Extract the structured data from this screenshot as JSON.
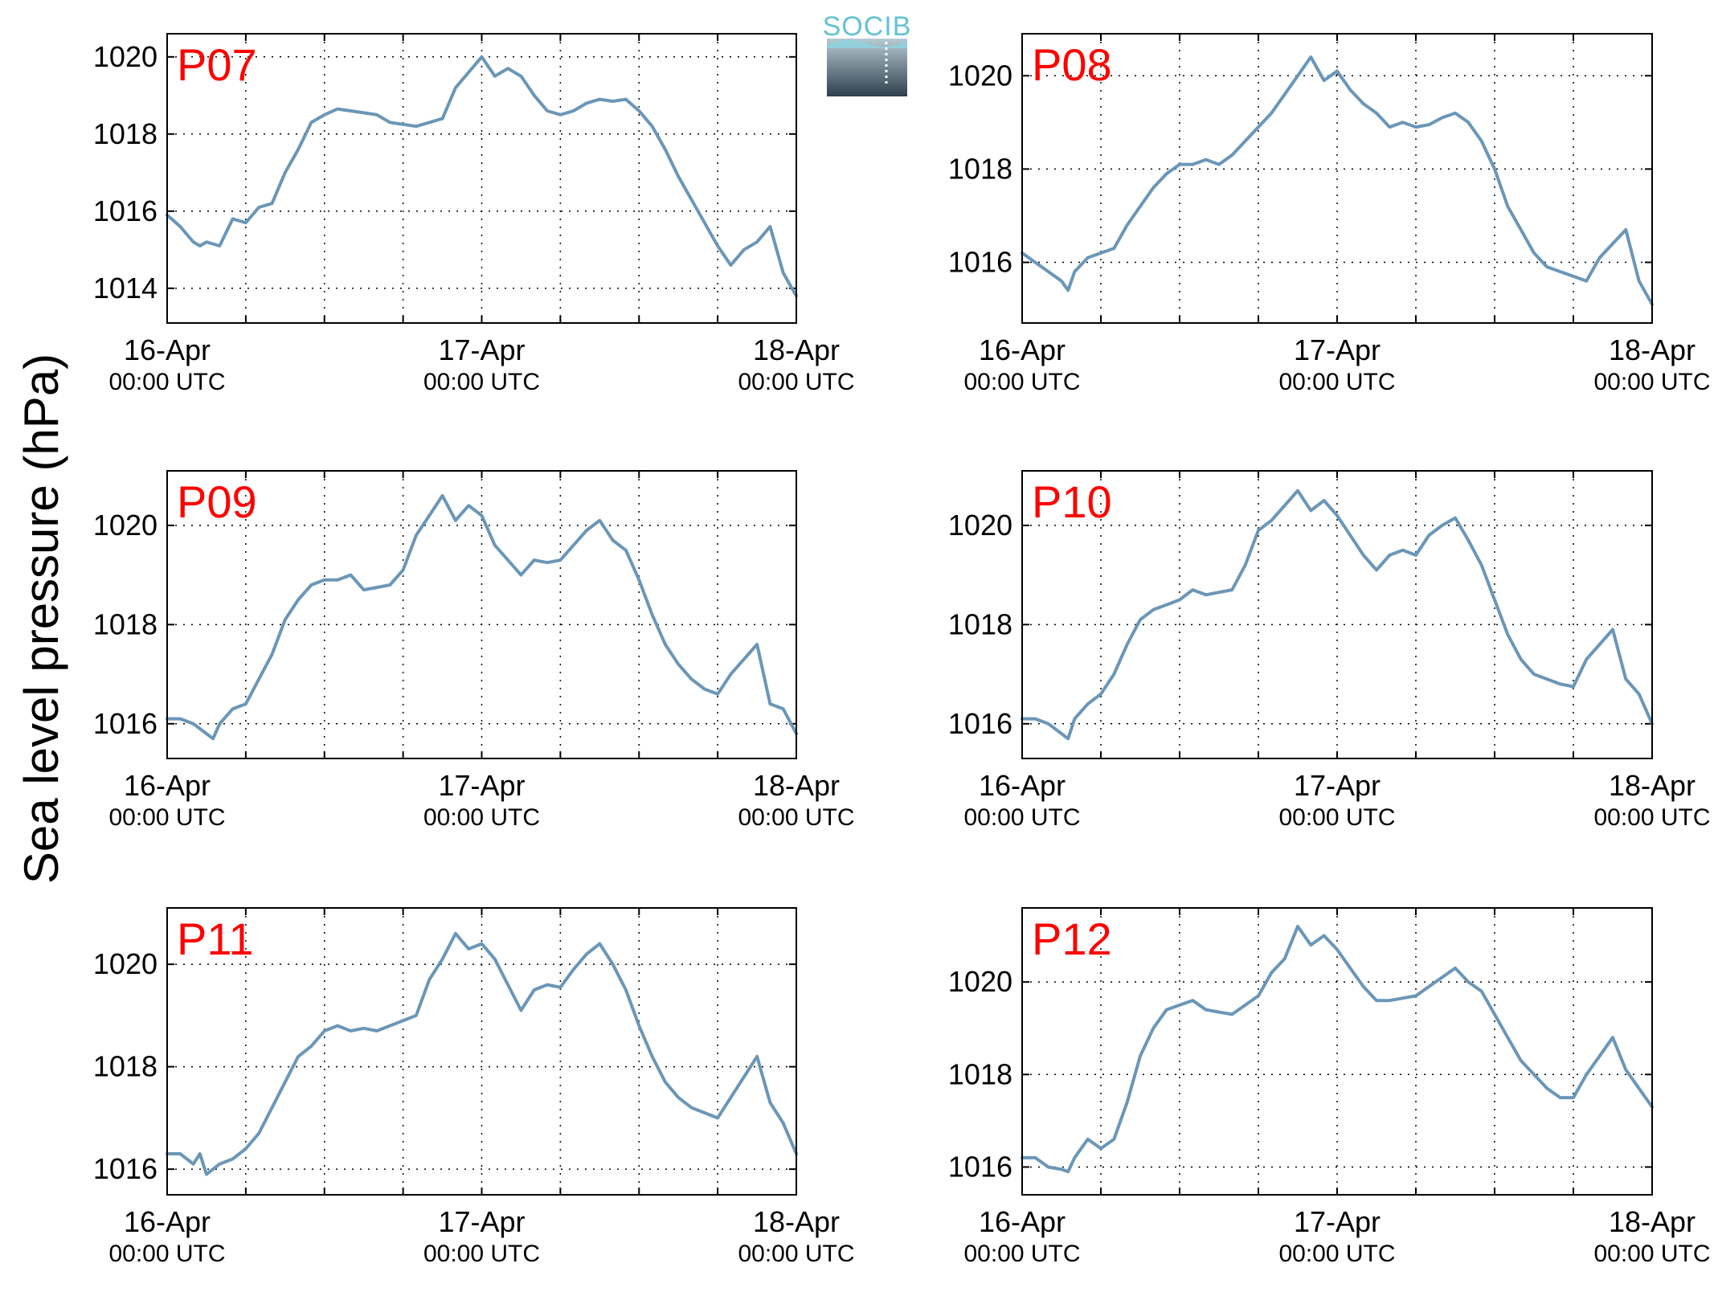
{
  "figure": {
    "ylabel": "Sea level pressure (hPa)",
    "logo_text": "SOCIB"
  },
  "colors": {
    "series": "#6b96b7",
    "label": "#ff0000",
    "logo_text": "#63c3d3",
    "logo_top": "#b7cbd3",
    "logo_bottom": "#2e3f4c"
  },
  "chart_data": [
    {
      "type": "line",
      "label": "P07",
      "ylim": [
        1013.1,
        1020.6
      ],
      "xlim": [
        0,
        48
      ],
      "yticks": [
        1014,
        1016,
        1018,
        1020
      ],
      "xtick_labels": [
        {
          "x": 0,
          "date": "16-Apr",
          "time": "00:00 UTC"
        },
        {
          "x": 24,
          "date": "17-Apr",
          "time": "00:00 UTC"
        },
        {
          "x": 48,
          "date": "18-Apr",
          "time": "00:00 UTC"
        }
      ],
      "grid": true,
      "x": [
        0,
        1,
        2,
        2.5,
        3,
        4,
        5,
        6,
        7,
        8,
        9,
        10,
        11,
        12,
        13,
        14,
        15,
        16,
        17,
        18,
        19,
        20,
        21,
        22,
        23,
        24,
        25,
        26,
        27,
        28,
        29,
        30,
        31,
        32,
        33,
        34,
        35,
        36,
        37,
        38,
        39,
        40,
        41,
        42,
        43,
        44,
        45,
        46,
        47,
        48
      ],
      "y": [
        1015.9,
        1015.6,
        1015.2,
        1015.1,
        1015.2,
        1015.1,
        1015.8,
        1015.7,
        1016.1,
        1016.2,
        1017.0,
        1017.6,
        1018.3,
        1018.5,
        1018.65,
        1018.6,
        1018.55,
        1018.5,
        1018.3,
        1018.25,
        1018.2,
        1018.3,
        1018.4,
        1019.2,
        1019.6,
        1020.0,
        1019.5,
        1019.7,
        1019.5,
        1019.0,
        1018.6,
        1018.5,
        1018.6,
        1018.8,
        1018.9,
        1018.85,
        1018.9,
        1018.6,
        1018.2,
        1017.6,
        1016.9,
        1016.3,
        1015.7,
        1015.1,
        1014.6,
        1015.0,
        1015.2,
        1015.6,
        1014.4,
        1013.8
      ]
    },
    {
      "type": "line",
      "label": "P08",
      "ylim": [
        1014.7,
        1020.9
      ],
      "xlim": [
        0,
        48
      ],
      "yticks": [
        1016,
        1018,
        1020
      ],
      "xtick_labels": [
        {
          "x": 0,
          "date": "16-Apr",
          "time": "00:00 UTC"
        },
        {
          "x": 24,
          "date": "17-Apr",
          "time": "00:00 UTC"
        },
        {
          "x": 48,
          "date": "18-Apr",
          "time": "00:00 UTC"
        }
      ],
      "grid": true,
      "x": [
        0,
        1,
        2,
        3,
        3.5,
        4,
        5,
        6,
        7,
        8,
        9,
        10,
        11,
        12,
        13,
        14,
        15,
        16,
        17,
        18,
        19,
        20,
        21,
        22,
        23,
        24,
        25,
        26,
        27,
        28,
        29,
        30,
        31,
        32,
        33,
        34,
        35,
        36,
        37,
        38,
        39,
        40,
        41,
        42,
        43,
        44,
        45,
        46,
        47,
        48
      ],
      "y": [
        1016.2,
        1016.0,
        1015.8,
        1015.6,
        1015.4,
        1015.8,
        1016.1,
        1016.2,
        1016.3,
        1016.8,
        1017.2,
        1017.6,
        1017.9,
        1018.1,
        1018.1,
        1018.2,
        1018.1,
        1018.3,
        1018.6,
        1018.9,
        1019.2,
        1019.6,
        1020.0,
        1020.4,
        1019.9,
        1020.1,
        1019.7,
        1019.4,
        1019.2,
        1018.9,
        1019.0,
        1018.9,
        1018.95,
        1019.1,
        1019.2,
        1019.0,
        1018.6,
        1018.0,
        1017.2,
        1016.7,
        1016.2,
        1015.9,
        1015.8,
        1015.7,
        1015.6,
        1016.1,
        1016.4,
        1016.7,
        1015.6,
        1015.1
      ]
    },
    {
      "type": "line",
      "label": "P09",
      "ylim": [
        1015.3,
        1021.1
      ],
      "xlim": [
        0,
        48
      ],
      "yticks": [
        1016,
        1018,
        1020
      ],
      "xtick_labels": [
        {
          "x": 0,
          "date": "16-Apr",
          "time": "00:00 UTC"
        },
        {
          "x": 24,
          "date": "17-Apr",
          "time": "00:00 UTC"
        },
        {
          "x": 48,
          "date": "18-Apr",
          "time": "00:00 UTC"
        }
      ],
      "grid": true,
      "x": [
        0,
        1,
        2,
        3,
        3.5,
        4,
        5,
        6,
        7,
        8,
        9,
        10,
        11,
        12,
        13,
        14,
        15,
        16,
        17,
        18,
        19,
        20,
        21,
        22,
        23,
        24,
        25,
        26,
        27,
        28,
        29,
        30,
        31,
        32,
        33,
        34,
        35,
        36,
        37,
        38,
        39,
        40,
        41,
        42,
        43,
        44,
        45,
        46,
        47,
        48
      ],
      "y": [
        1016.1,
        1016.1,
        1016.0,
        1015.8,
        1015.7,
        1016.0,
        1016.3,
        1016.4,
        1016.9,
        1017.4,
        1018.1,
        1018.5,
        1018.8,
        1018.9,
        1018.9,
        1019.0,
        1018.7,
        1018.75,
        1018.8,
        1019.1,
        1019.8,
        1020.2,
        1020.6,
        1020.1,
        1020.4,
        1020.2,
        1019.6,
        1019.3,
        1019.0,
        1019.3,
        1019.25,
        1019.3,
        1019.6,
        1019.9,
        1020.1,
        1019.7,
        1019.5,
        1018.9,
        1018.2,
        1017.6,
        1017.2,
        1016.9,
        1016.7,
        1016.6,
        1017.0,
        1017.3,
        1017.6,
        1016.4,
        1016.3,
        1015.8
      ]
    },
    {
      "type": "line",
      "label": "P10",
      "ylim": [
        1015.3,
        1021.1
      ],
      "xlim": [
        0,
        48
      ],
      "yticks": [
        1016,
        1018,
        1020
      ],
      "xtick_labels": [
        {
          "x": 0,
          "date": "16-Apr",
          "time": "00:00 UTC"
        },
        {
          "x": 24,
          "date": "17-Apr",
          "time": "00:00 UTC"
        },
        {
          "x": 48,
          "date": "18-Apr",
          "time": "00:00 UTC"
        }
      ],
      "grid": true,
      "x": [
        0,
        1,
        2,
        3,
        3.5,
        4,
        5,
        6,
        7,
        8,
        9,
        10,
        11,
        12,
        13,
        14,
        15,
        16,
        17,
        18,
        19,
        20,
        21,
        22,
        23,
        24,
        25,
        26,
        27,
        28,
        29,
        30,
        31,
        32,
        33,
        34,
        35,
        36,
        37,
        38,
        39,
        40,
        41,
        42,
        43,
        44,
        45,
        46,
        47,
        48
      ],
      "y": [
        1016.1,
        1016.1,
        1016.0,
        1015.8,
        1015.7,
        1016.1,
        1016.4,
        1016.6,
        1017.0,
        1017.6,
        1018.1,
        1018.3,
        1018.4,
        1018.5,
        1018.7,
        1018.6,
        1018.65,
        1018.7,
        1019.2,
        1019.9,
        1020.1,
        1020.4,
        1020.7,
        1020.3,
        1020.5,
        1020.2,
        1019.8,
        1019.4,
        1019.1,
        1019.4,
        1019.5,
        1019.4,
        1019.8,
        1020.0,
        1020.15,
        1019.7,
        1019.2,
        1018.5,
        1017.8,
        1017.3,
        1017.0,
        1016.9,
        1016.8,
        1016.75,
        1017.3,
        1017.6,
        1017.9,
        1016.9,
        1016.6,
        1016.0
      ]
    },
    {
      "type": "line",
      "label": "P11",
      "ylim": [
        1015.5,
        1021.1
      ],
      "xlim": [
        0,
        48
      ],
      "yticks": [
        1016,
        1018,
        1020
      ],
      "xtick_labels": [
        {
          "x": 0,
          "date": "16-Apr",
          "time": "00:00 UTC"
        },
        {
          "x": 24,
          "date": "17-Apr",
          "time": "00:00 UTC"
        },
        {
          "x": 48,
          "date": "18-Apr",
          "time": "00:00 UTC"
        }
      ],
      "grid": true,
      "x": [
        0,
        1,
        2,
        2.5,
        3,
        4,
        5,
        6,
        7,
        8,
        9,
        10,
        11,
        12,
        13,
        14,
        15,
        16,
        17,
        18,
        19,
        20,
        21,
        22,
        23,
        24,
        25,
        26,
        27,
        28,
        29,
        30,
        31,
        32,
        33,
        34,
        35,
        36,
        37,
        38,
        39,
        40,
        41,
        42,
        43,
        44,
        45,
        46,
        47,
        48
      ],
      "y": [
        1016.3,
        1016.3,
        1016.1,
        1016.3,
        1015.9,
        1016.1,
        1016.2,
        1016.4,
        1016.7,
        1017.2,
        1017.7,
        1018.2,
        1018.4,
        1018.7,
        1018.8,
        1018.7,
        1018.75,
        1018.7,
        1018.8,
        1018.9,
        1019.0,
        1019.7,
        1020.1,
        1020.6,
        1020.3,
        1020.4,
        1020.1,
        1019.6,
        1019.1,
        1019.5,
        1019.6,
        1019.55,
        1019.9,
        1020.2,
        1020.4,
        1020.0,
        1019.5,
        1018.8,
        1018.2,
        1017.7,
        1017.4,
        1017.2,
        1017.1,
        1017.0,
        1017.4,
        1017.8,
        1018.2,
        1017.3,
        1016.9,
        1016.3
      ]
    },
    {
      "type": "line",
      "label": "P12",
      "ylim": [
        1015.4,
        1021.6
      ],
      "xlim": [
        0,
        48
      ],
      "yticks": [
        1016,
        1018,
        1020
      ],
      "xtick_labels": [
        {
          "x": 0,
          "date": "16-Apr",
          "time": "00:00 UTC"
        },
        {
          "x": 24,
          "date": "17-Apr",
          "time": "00:00 UTC"
        },
        {
          "x": 48,
          "date": "18-Apr",
          "time": "00:00 UTC"
        }
      ],
      "grid": true,
      "x": [
        0,
        1,
        2,
        3,
        3.5,
        4,
        5,
        6,
        7,
        8,
        9,
        10,
        11,
        12,
        13,
        14,
        15,
        16,
        17,
        18,
        19,
        20,
        21,
        22,
        23,
        24,
        25,
        26,
        27,
        28,
        29,
        30,
        31,
        32,
        33,
        34,
        35,
        36,
        37,
        38,
        39,
        40,
        41,
        42,
        43,
        44,
        45,
        46,
        47,
        48
      ],
      "y": [
        1016.2,
        1016.2,
        1016.0,
        1015.95,
        1015.9,
        1016.2,
        1016.6,
        1016.4,
        1016.6,
        1017.4,
        1018.4,
        1019.0,
        1019.4,
        1019.5,
        1019.6,
        1019.4,
        1019.35,
        1019.3,
        1019.5,
        1019.7,
        1020.2,
        1020.5,
        1021.2,
        1020.8,
        1021.0,
        1020.7,
        1020.3,
        1019.9,
        1019.6,
        1019.6,
        1019.65,
        1019.7,
        1019.9,
        1020.1,
        1020.3,
        1020.0,
        1019.8,
        1019.3,
        1018.8,
        1018.3,
        1018.0,
        1017.7,
        1017.5,
        1017.5,
        1018.0,
        1018.4,
        1018.8,
        1018.1,
        1017.7,
        1017.3
      ]
    }
  ]
}
